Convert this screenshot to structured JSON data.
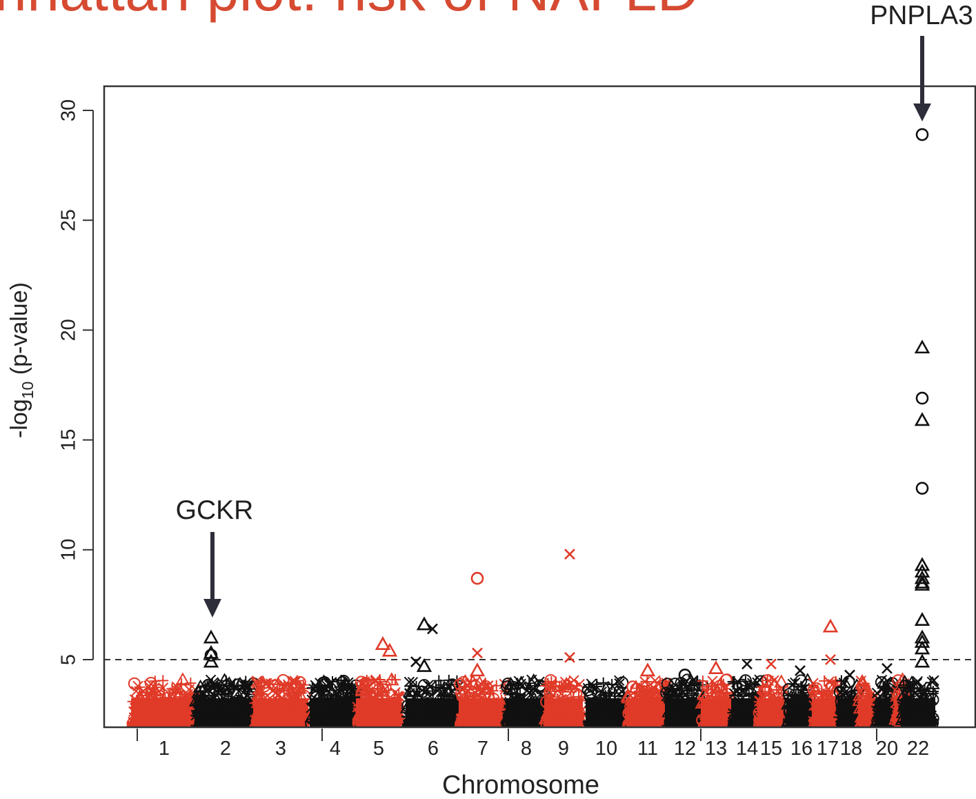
{
  "title": "nhattan plot: risk of NAFLD",
  "chart_data": {
    "type": "scatter",
    "title": "nhattan plot: risk of NAFLD",
    "xlabel": "Chromosome",
    "ylabel_main": "-log",
    "ylabel_sub": "10",
    "ylabel_rest": " (p-value)",
    "ylim": [
      2,
      31
    ],
    "yticks": [
      5,
      10,
      15,
      20,
      25,
      30
    ],
    "threshold": 5,
    "x_tick_labels": [
      "1",
      "2",
      "3",
      "4",
      "5",
      "6",
      "7",
      "8",
      "9",
      "10",
      "11",
      "12",
      "13",
      "14",
      "15",
      "16",
      "17",
      "18",
      "20",
      "22"
    ],
    "chromosomes": [
      "1",
      "2",
      "3",
      "4",
      "5",
      "6",
      "7",
      "8",
      "9",
      "10",
      "11",
      "12",
      "13",
      "14",
      "15",
      "16",
      "17",
      "18",
      "19",
      "20",
      "21",
      "22"
    ],
    "colors": {
      "odd": "#e03a28",
      "even": "#111111",
      "axis": "#333333",
      "arrow": "#2e2e3a"
    },
    "annotations": [
      {
        "label": "GCKR",
        "chromosome": "2",
        "value": 6.0
      },
      {
        "label": "PNPLA3",
        "chromosome": "22",
        "value": 28.9
      }
    ],
    "notable_points": [
      {
        "chromosome": "2",
        "value": 6.0,
        "marker": "triangle"
      },
      {
        "chromosome": "2",
        "value": 5.3,
        "marker": "triangle"
      },
      {
        "chromosome": "2",
        "value": 5.2,
        "marker": "circle"
      },
      {
        "chromosome": "2",
        "value": 4.9,
        "marker": "triangle"
      },
      {
        "chromosome": "5",
        "value": 5.7,
        "marker": "triangle"
      },
      {
        "chromosome": "5",
        "value": 5.4,
        "marker": "triangle"
      },
      {
        "chromosome": "6",
        "value": 6.6,
        "marker": "triangle"
      },
      {
        "chromosome": "6",
        "value": 6.4,
        "marker": "cross"
      },
      {
        "chromosome": "6",
        "value": 4.9,
        "marker": "cross"
      },
      {
        "chromosome": "6",
        "value": 4.7,
        "marker": "triangle"
      },
      {
        "chromosome": "7",
        "value": 8.7,
        "marker": "circle"
      },
      {
        "chromosome": "7",
        "value": 5.3,
        "marker": "cross"
      },
      {
        "chromosome": "7",
        "value": 4.5,
        "marker": "triangle"
      },
      {
        "chromosome": "9",
        "value": 9.8,
        "marker": "cross"
      },
      {
        "chromosome": "9",
        "value": 5.1,
        "marker": "cross"
      },
      {
        "chromosome": "11",
        "value": 4.5,
        "marker": "triangle"
      },
      {
        "chromosome": "12",
        "value": 4.3,
        "marker": "circle"
      },
      {
        "chromosome": "13",
        "value": 4.6,
        "marker": "triangle"
      },
      {
        "chromosome": "14",
        "value": 4.8,
        "marker": "cross"
      },
      {
        "chromosome": "15",
        "value": 4.8,
        "marker": "cross"
      },
      {
        "chromosome": "16",
        "value": 4.5,
        "marker": "cross"
      },
      {
        "chromosome": "17",
        "value": 6.5,
        "marker": "triangle"
      },
      {
        "chromosome": "17",
        "value": 5.0,
        "marker": "cross"
      },
      {
        "chromosome": "18",
        "value": 4.3,
        "marker": "cross"
      },
      {
        "chromosome": "20",
        "value": 4.6,
        "marker": "cross"
      },
      {
        "chromosome": "22",
        "value": 28.9,
        "marker": "circle"
      },
      {
        "chromosome": "22",
        "value": 19.2,
        "marker": "triangle"
      },
      {
        "chromosome": "22",
        "value": 16.9,
        "marker": "circle"
      },
      {
        "chromosome": "22",
        "value": 15.9,
        "marker": "triangle"
      },
      {
        "chromosome": "22",
        "value": 12.8,
        "marker": "circle"
      },
      {
        "chromosome": "22",
        "value": 9.3,
        "marker": "triangle"
      },
      {
        "chromosome": "22",
        "value": 9.0,
        "marker": "triangle"
      },
      {
        "chromosome": "22",
        "value": 8.7,
        "marker": "triangle"
      },
      {
        "chromosome": "22",
        "value": 8.5,
        "marker": "triangle"
      },
      {
        "chromosome": "22",
        "value": 8.4,
        "marker": "triangle"
      },
      {
        "chromosome": "22",
        "value": 6.8,
        "marker": "triangle"
      },
      {
        "chromosome": "22",
        "value": 6.0,
        "marker": "triangle"
      },
      {
        "chromosome": "22",
        "value": 5.8,
        "marker": "triangle"
      },
      {
        "chromosome": "22",
        "value": 5.5,
        "marker": "triangle"
      },
      {
        "chromosome": "22",
        "value": 4.9,
        "marker": "triangle"
      }
    ]
  }
}
